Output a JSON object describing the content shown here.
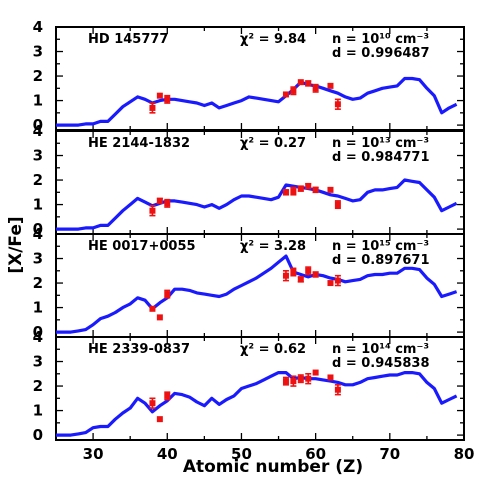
{
  "chart_data": {
    "type": "line",
    "xlabel": "Atomic number (Z)",
    "ylabel": "[X/Fe]",
    "xlim": [
      25,
      80
    ],
    "ylim": [
      -0.2,
      4
    ],
    "x_ticks": [
      "30",
      "40",
      "50",
      "60",
      "70",
      "80"
    ],
    "y_ticks": [
      "0",
      "1",
      "2",
      "3",
      "4"
    ],
    "colors": {
      "model": "#1a1aff",
      "observed": "#ee1111"
    },
    "panels": [
      {
        "star": "HD 145777",
        "chi2_label": "χ² = 9.84",
        "n_label": "n = 10¹⁰ cm⁻³",
        "d_label": "d = 0.996487",
        "model": {
          "x": [
            25,
            26,
            27,
            28,
            29,
            30,
            31,
            32,
            33,
            34,
            35,
            36,
            37,
            38,
            39,
            40,
            41,
            42,
            43,
            44,
            45,
            46,
            47,
            48,
            49,
            50,
            51,
            52,
            53,
            54,
            55,
            56,
            57,
            58,
            59,
            60,
            61,
            62,
            63,
            64,
            65,
            66,
            67,
            68,
            69,
            70,
            71,
            72,
            73,
            74,
            75,
            76,
            77,
            78,
            79
          ],
          "y": [
            0.0,
            0.0,
            0.0,
            0.0,
            0.05,
            0.05,
            0.15,
            0.15,
            0.45,
            0.75,
            0.95,
            1.15,
            1.05,
            0.9,
            1.0,
            1.05,
            1.05,
            1.0,
            0.95,
            0.9,
            0.8,
            0.9,
            0.7,
            0.8,
            0.9,
            1.0,
            1.15,
            1.1,
            1.05,
            1.0,
            0.95,
            1.2,
            1.45,
            1.75,
            1.65,
            1.6,
            1.5,
            1.4,
            1.3,
            1.15,
            1.05,
            1.1,
            1.3,
            1.4,
            1.5,
            1.55,
            1.6,
            1.9,
            1.9,
            1.85,
            1.5,
            1.2,
            0.5,
            0.7,
            0.85
          ]
        },
        "obs": [
          {
            "x": 38,
            "y": 0.7,
            "err": 0.2
          },
          {
            "x": 39,
            "y": 1.2,
            "err": 0
          },
          {
            "x": 40,
            "y": 1.05,
            "err": 0.15
          },
          {
            "x": 56,
            "y": 1.25,
            "err": 0
          },
          {
            "x": 57,
            "y": 1.4,
            "err": 0.15
          },
          {
            "x": 58,
            "y": 1.75,
            "err": 0
          },
          {
            "x": 59,
            "y": 1.7,
            "err": 0.1
          },
          {
            "x": 60,
            "y": 1.5,
            "err": 0.15
          },
          {
            "x": 62,
            "y": 1.6,
            "err": 0
          },
          {
            "x": 63,
            "y": 0.85,
            "err": 0.2
          }
        ]
      },
      {
        "star": "HE 2144-1832",
        "chi2_label": "χ² = 0.27",
        "n_label": "n = 10¹³ cm⁻³",
        "d_label": "d = 0.984771",
        "model": {
          "x": [
            25,
            26,
            27,
            28,
            29,
            30,
            31,
            32,
            33,
            34,
            35,
            36,
            37,
            38,
            39,
            40,
            41,
            42,
            43,
            44,
            45,
            46,
            47,
            48,
            49,
            50,
            51,
            52,
            53,
            54,
            55,
            56,
            57,
            58,
            59,
            60,
            61,
            62,
            63,
            64,
            65,
            66,
            67,
            68,
            69,
            70,
            71,
            72,
            73,
            74,
            75,
            76,
            77,
            78,
            79
          ],
          "y": [
            0.0,
            0.0,
            0.0,
            0.0,
            0.05,
            0.05,
            0.15,
            0.15,
            0.45,
            0.75,
            1.0,
            1.25,
            1.1,
            0.95,
            1.05,
            1.15,
            1.15,
            1.1,
            1.05,
            1.0,
            0.9,
            1.0,
            0.85,
            1.0,
            1.2,
            1.35,
            1.35,
            1.3,
            1.25,
            1.2,
            1.3,
            1.8,
            1.75,
            1.7,
            1.65,
            1.6,
            1.5,
            1.4,
            1.35,
            1.25,
            1.15,
            1.2,
            1.5,
            1.6,
            1.6,
            1.65,
            1.7,
            2.0,
            1.95,
            1.9,
            1.6,
            1.3,
            0.75,
            0.9,
            1.05
          ]
        },
        "obs": [
          {
            "x": 38,
            "y": 0.75,
            "err": 0.2
          },
          {
            "x": 39,
            "y": 1.15,
            "err": 0.1
          },
          {
            "x": 40,
            "y": 1.05,
            "err": 0.15
          },
          {
            "x": 56,
            "y": 1.5,
            "err": 0.1
          },
          {
            "x": 57,
            "y": 1.55,
            "err": 0.15
          },
          {
            "x": 58,
            "y": 1.65,
            "err": 0.1
          },
          {
            "x": 59,
            "y": 1.75,
            "err": 0.1
          },
          {
            "x": 60,
            "y": 1.6,
            "err": 0.1
          },
          {
            "x": 62,
            "y": 1.6,
            "err": 0
          },
          {
            "x": 63,
            "y": 1.0,
            "err": 0.15
          }
        ]
      },
      {
        "star": "HE 0017+0055",
        "chi2_label": "χ² = 3.28",
        "n_label": "n = 10¹⁵ cm⁻³",
        "d_label": "d = 0.897671",
        "model": {
          "x": [
            25,
            26,
            27,
            28,
            29,
            30,
            31,
            32,
            33,
            34,
            35,
            36,
            37,
            38,
            39,
            40,
            41,
            42,
            43,
            44,
            45,
            46,
            47,
            48,
            49,
            50,
            51,
            52,
            53,
            54,
            55,
            56,
            57,
            58,
            59,
            60,
            61,
            62,
            63,
            64,
            65,
            66,
            67,
            68,
            69,
            70,
            71,
            72,
            73,
            74,
            75,
            76,
            77,
            78,
            79
          ],
          "y": [
            0.0,
            0.0,
            0.0,
            0.05,
            0.1,
            0.3,
            0.55,
            0.65,
            0.8,
            1.0,
            1.15,
            1.4,
            1.3,
            0.95,
            1.2,
            1.4,
            1.75,
            1.75,
            1.7,
            1.6,
            1.55,
            1.5,
            1.45,
            1.55,
            1.75,
            1.9,
            2.05,
            2.2,
            2.4,
            2.6,
            2.85,
            3.1,
            2.45,
            2.35,
            2.25,
            2.35,
            2.3,
            2.2,
            2.15,
            2.05,
            2.1,
            2.15,
            2.3,
            2.35,
            2.35,
            2.4,
            2.4,
            2.6,
            2.6,
            2.55,
            2.2,
            1.95,
            1.45,
            1.55,
            1.65
          ]
        },
        "obs": [
          {
            "x": 38,
            "y": 0.95,
            "err": 0
          },
          {
            "x": 39,
            "y": 0.6,
            "err": 0
          },
          {
            "x": 40,
            "y": 1.55,
            "err": 0.15
          },
          {
            "x": 56,
            "y": 2.3,
            "err": 0.2
          },
          {
            "x": 57,
            "y": 2.45,
            "err": 0.15
          },
          {
            "x": 58,
            "y": 2.15,
            "err": 0.1
          },
          {
            "x": 59,
            "y": 2.5,
            "err": 0.15
          },
          {
            "x": 60,
            "y": 2.35,
            "err": 0.1
          },
          {
            "x": 62,
            "y": 2.0,
            "err": 0
          },
          {
            "x": 63,
            "y": 2.1,
            "err": 0.2
          }
        ]
      },
      {
        "star": "HE 2339-0837",
        "chi2_label": "χ² = 0.62",
        "n_label": "n = 10¹⁴ cm⁻³",
        "d_label": "d = 0.945838",
        "model": {
          "x": [
            25,
            26,
            27,
            28,
            29,
            30,
            31,
            32,
            33,
            34,
            35,
            36,
            37,
            38,
            39,
            40,
            41,
            42,
            43,
            44,
            45,
            46,
            47,
            48,
            49,
            50,
            51,
            52,
            53,
            54,
            55,
            56,
            57,
            58,
            59,
            60,
            61,
            62,
            63,
            64,
            65,
            66,
            67,
            68,
            69,
            70,
            71,
            72,
            73,
            74,
            75,
            76,
            77,
            78,
            79
          ],
          "y": [
            0.0,
            0.0,
            0.0,
            0.05,
            0.1,
            0.3,
            0.35,
            0.35,
            0.65,
            0.9,
            1.1,
            1.5,
            1.3,
            0.95,
            1.2,
            1.4,
            1.7,
            1.65,
            1.55,
            1.35,
            1.2,
            1.5,
            1.25,
            1.45,
            1.6,
            1.9,
            2.0,
            2.1,
            2.25,
            2.4,
            2.55,
            2.55,
            2.3,
            2.35,
            2.3,
            2.3,
            2.25,
            2.2,
            2.15,
            2.05,
            2.05,
            2.15,
            2.3,
            2.35,
            2.4,
            2.45,
            2.45,
            2.55,
            2.55,
            2.5,
            2.15,
            1.9,
            1.3,
            1.45,
            1.6
          ]
        },
        "obs": [
          {
            "x": 38,
            "y": 1.3,
            "err": 0.2
          },
          {
            "x": 39,
            "y": 0.65,
            "err": 0
          },
          {
            "x": 40,
            "y": 1.6,
            "err": 0.15
          },
          {
            "x": 56,
            "y": 2.2,
            "err": 0.15
          },
          {
            "x": 57,
            "y": 2.2,
            "err": 0.2
          },
          {
            "x": 58,
            "y": 2.3,
            "err": 0.15
          },
          {
            "x": 59,
            "y": 2.3,
            "err": 0.2
          },
          {
            "x": 60,
            "y": 2.55,
            "err": 0
          },
          {
            "x": 62,
            "y": 2.35,
            "err": 0
          },
          {
            "x": 63,
            "y": 1.85,
            "err": 0.2
          }
        ]
      }
    ]
  }
}
